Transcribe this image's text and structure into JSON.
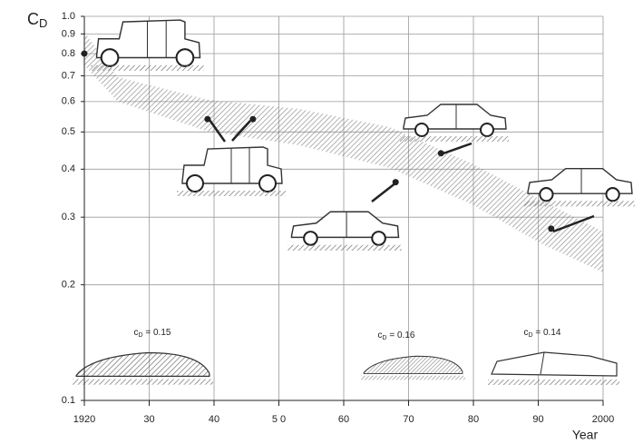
{
  "chart_data": {
    "type": "scatter",
    "ylabel": "C",
    "ylabel_subscript": "D",
    "xlabel": "Year",
    "xlim": [
      1920,
      2000
    ],
    "xticks": [
      {
        "value": 1920,
        "label": "1920"
      },
      {
        "value": 1930,
        "label": "30"
      },
      {
        "value": 1940,
        "label": "40"
      },
      {
        "value": 1950,
        "label": "5 0"
      },
      {
        "value": 1960,
        "label": "60"
      },
      {
        "value": 1970,
        "label": "70"
      },
      {
        "value": 1980,
        "label": "80"
      },
      {
        "value": 1990,
        "label": "90"
      },
      {
        "value": 2000,
        "label": "2000"
      }
    ],
    "ylim": [
      0.1,
      1.0
    ],
    "log_y": true,
    "yticks": [
      0.1,
      0.2,
      0.3,
      0.4,
      0.5,
      0.6,
      0.7,
      0.8,
      0.9,
      {
        "value": 1.0,
        "label": "1.0"
      }
    ],
    "grid": true,
    "series": [
      {
        "color": "#222222",
        "x": [
          1920,
          1939,
          1946,
          1968,
          1975,
          1992
        ],
        "values": [
          0.8,
          0.54,
          0.54,
          0.37,
          0.44,
          0.28
        ]
      }
    ],
    "annotations": [
      {
        "symbol": "c",
        "subscript": "D",
        "text": " = 0.15"
      },
      {
        "symbol": "c",
        "subscript": "D",
        "text": " = 0.16"
      },
      {
        "symbol": "c",
        "subscript": "D",
        "text": " = 0.14"
      }
    ]
  }
}
